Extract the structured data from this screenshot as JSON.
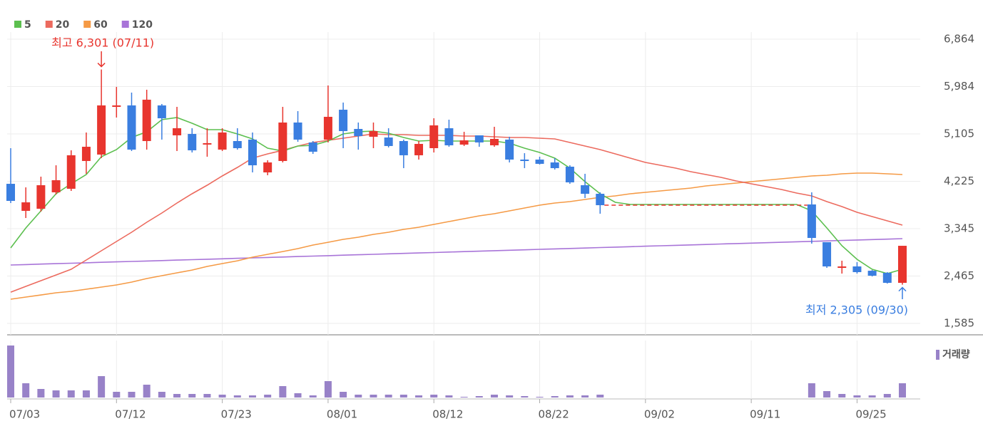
{
  "chart_data": [
    {
      "type": "candlestick",
      "categories": [
        "07/03",
        null,
        null,
        null,
        null,
        null,
        null,
        "07/12",
        null,
        null,
        null,
        null,
        null,
        null,
        "07/23",
        null,
        null,
        null,
        null,
        null,
        null,
        "08/01",
        null,
        null,
        null,
        null,
        null,
        null,
        "08/12",
        null,
        null,
        null,
        null,
        null,
        null,
        "08/22",
        null,
        null,
        null,
        null,
        null,
        null,
        "09/02",
        null,
        null,
        null,
        null,
        null,
        null,
        "09/11",
        null,
        null,
        null,
        null,
        null,
        null,
        "09/25",
        null,
        null,
        null
      ],
      "ohlc": {
        "open": [
          4178,
          3676,
          3715,
          4020,
          4086,
          4602,
          4721,
          5607,
          5634,
          4972,
          5634,
          5078,
          5104,
          4920,
          4813,
          4972,
          4999,
          4390,
          4602,
          5316,
          4946,
          4999,
          5554,
          5197,
          5052,
          5038,
          4972,
          4708,
          4840,
          5210,
          4906,
          5078,
          4893,
          4999,
          4628,
          4628,
          4575,
          4496,
          4152,
          3993,
          null,
          null,
          null,
          null,
          null,
          null,
          null,
          null,
          null,
          null,
          null,
          null,
          null,
          3795,
          3094,
          2617,
          2644,
          2564,
          2525,
          2339
        ],
        "high": [
          4840,
          4112,
          4311,
          4522,
          4800,
          5131,
          6301,
          5978,
          5872,
          5925,
          5660,
          5607,
          5210,
          5210,
          5210,
          5210,
          5131,
          4615,
          5607,
          5528,
          4972,
          6004,
          5687,
          5316,
          5316,
          5210,
          4999,
          4972,
          5395,
          5369,
          5144,
          5078,
          5237,
          5052,
          4747,
          4681,
          4655,
          4522,
          4364,
          4020,
          null,
          null,
          null,
          null,
          null,
          null,
          null,
          null,
          null,
          null,
          null,
          null,
          null,
          4020,
          3094,
          2750,
          2723,
          2577,
          2538,
          3027
        ],
        "low": [
          3821,
          3543,
          3662,
          3980,
          4046,
          4364,
          4655,
          5409,
          4787,
          4813,
          4999,
          4787,
          4760,
          4681,
          4787,
          4813,
          4390,
          4337,
          4575,
          4959,
          4734,
          4946,
          4840,
          4813,
          4840,
          4853,
          4469,
          4628,
          4760,
          4866,
          4880,
          4866,
          4866,
          4575,
          4469,
          4536,
          4443,
          4178,
          3914,
          3623,
          null,
          null,
          null,
          null,
          null,
          null,
          null,
          null,
          null,
          null,
          null,
          null,
          null,
          3067,
          2617,
          2511,
          2511,
          2458,
          2326,
          2305
        ],
        "close": [
          3861,
          3834,
          4152,
          4245,
          4708,
          4866,
          5634,
          5634,
          4813,
          5740,
          5395,
          5210,
          4800,
          4933,
          5131,
          4840,
          4522,
          4575,
          5316,
          4999,
          4774,
          5422,
          5157,
          5065,
          5157,
          4880,
          4708,
          4919,
          5263,
          4893,
          4985,
          4946,
          5012,
          4628,
          4602,
          4549,
          4469,
          4205,
          3993,
          3781,
          null,
          null,
          null,
          null,
          null,
          null,
          null,
          null,
          null,
          null,
          null,
          null,
          null,
          3173,
          2644,
          2644,
          2538,
          2472,
          2339,
          3027
        ]
      },
      "up_color": "#e8352e",
      "down_color": "#3a7ee0",
      "series": [
        {
          "name": "5",
          "color": "#5cbf4f",
          "values": [
            2988,
            3358,
            3676,
            3993,
            4178,
            4350,
            4681,
            4813,
            5038,
            5144,
            5369,
            5409,
            5303,
            5184,
            5184,
            5104,
            5012,
            4840,
            4787,
            4880,
            4893,
            4972,
            5104,
            5144,
            5157,
            5118,
            5038,
            4972,
            4985,
            4972,
            4972,
            4972,
            4972,
            4933,
            4840,
            4760,
            4655,
            4469,
            4218,
            3993,
            3834,
            3795,
            3795,
            3795,
            3795,
            3795,
            3795,
            3795,
            3795,
            3795,
            3795,
            3795,
            3795,
            3676,
            3358,
            3027,
            2776,
            2591,
            2511,
            2591
          ]
        },
        {
          "name": "20",
          "color": "#ec6a5e",
          "values": [
            2167,
            2273,
            2379,
            2485,
            2591,
            2763,
            2935,
            3107,
            3279,
            3464,
            3636,
            3821,
            3993,
            4152,
            4324,
            4483,
            4655,
            4734,
            4800,
            4879,
            4946,
            4985,
            5025,
            5065,
            5104,
            5091,
            5091,
            5078,
            5078,
            5078,
            5065,
            5065,
            5051,
            5038,
            5038,
            5025,
            5012,
            4946,
            4879,
            4813,
            4734,
            4655,
            4575,
            4522,
            4469,
            4403,
            4350,
            4297,
            4231,
            4178,
            4125,
            4072,
            4006,
            3953,
            3848,
            3755,
            3649,
            3570,
            3490,
            3411
          ]
        },
        {
          "name": "60",
          "color": "#f59a45",
          "values": [
            2035,
            2075,
            2114,
            2154,
            2181,
            2220,
            2260,
            2300,
            2353,
            2419,
            2472,
            2525,
            2577,
            2644,
            2697,
            2749,
            2816,
            2869,
            2921,
            2974,
            3041,
            3093,
            3146,
            3186,
            3239,
            3279,
            3332,
            3371,
            3424,
            3477,
            3530,
            3583,
            3623,
            3676,
            3728,
            3781,
            3821,
            3848,
            3887,
            3927,
            3953,
            3993,
            4020,
            4046,
            4072,
            4099,
            4139,
            4165,
            4192,
            4218,
            4244,
            4271,
            4297,
            4324,
            4337,
            4364,
            4377,
            4377,
            4364,
            4350
          ]
        },
        {
          "name": "120",
          "color": "#a874d8",
          "values": [
            2670,
            2678,
            2687,
            2695,
            2703,
            2712,
            2720,
            2728,
            2736,
            2745,
            2753,
            2761,
            2770,
            2778,
            2786,
            2795,
            2803,
            2811,
            2819,
            2828,
            2836,
            2844,
            2853,
            2861,
            2869,
            2878,
            2886,
            2894,
            2902,
            2911,
            2919,
            2927,
            2936,
            2944,
            2952,
            2961,
            2969,
            2977,
            2985,
            2994,
            3002,
            3010,
            3019,
            3027,
            3035,
            3044,
            3052,
            3060,
            3068,
            3077,
            3085,
            3093,
            3102,
            3110,
            3118,
            3127,
            3135,
            3143,
            3151,
            3160
          ]
        }
      ],
      "ylim": [
        1374,
        6996
      ],
      "yticks": [
        {
          "value": 6864,
          "label": "6,864"
        },
        {
          "value": 5984,
          "label": "5,984"
        },
        {
          "value": 5105,
          "label": "5,105"
        },
        {
          "value": 4225,
          "label": "4,225"
        },
        {
          "value": 3345,
          "label": "3,345"
        },
        {
          "value": 2465,
          "label": "2,465"
        },
        {
          "value": 1585,
          "label": "1,585"
        }
      ],
      "grid": true,
      "annotations": [
        {
          "text": "최고 6,301 (07/11)",
          "color": "#e8352e"
        },
        {
          "text": "최저 2,305 (09/30)",
          "color": "#3a7ee0"
        }
      ]
    },
    {
      "type": "bar",
      "series": [
        {
          "name": "거래량",
          "color": "#9882c8",
          "values": [
            73,
            20,
            12,
            10,
            10,
            10,
            30,
            8,
            8,
            18,
            8,
            5,
            5,
            5,
            4,
            3,
            3,
            4,
            16,
            6,
            3,
            23,
            8,
            4,
            4,
            4,
            4,
            3,
            4,
            3,
            1,
            2,
            4,
            3,
            2,
            1,
            2,
            3,
            3,
            4,
            null,
            null,
            null,
            null,
            null,
            null,
            null,
            null,
            null,
            null,
            null,
            null,
            null,
            20,
            9,
            5,
            3,
            3,
            5,
            20
          ]
        }
      ],
      "ylim": [
        0,
        73
      ]
    }
  ]
}
